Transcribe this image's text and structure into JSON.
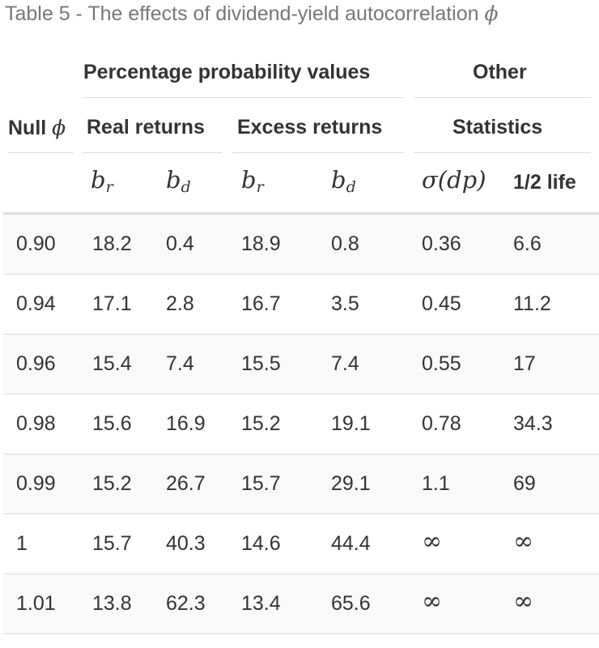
{
  "caption": {
    "text": "Table 5 - The effects of dividend-yield autocorrelation",
    "symbol": "ϕ"
  },
  "header": {
    "group_left": "Percentage probability values",
    "group_right": "Other",
    "null_label": "Null",
    "null_symbol": "ϕ",
    "real_returns": "Real returns",
    "excess_returns": "Excess returns",
    "statistics": "Statistics",
    "br_base": "b",
    "br_sub": "r",
    "bd_base": "b",
    "bd_sub": "d",
    "sigma": "σ(dp)",
    "half_life": "1/2 life"
  },
  "rows": [
    [
      "0.90",
      "18.2",
      "0.4",
      "18.9",
      "0.8",
      "0.36",
      "6.6"
    ],
    [
      "0.94",
      "17.1",
      "2.8",
      "16.7",
      "3.5",
      "0.45",
      "11.2"
    ],
    [
      "0.96",
      "15.4",
      "7.4",
      "15.5",
      "7.4",
      "0.55",
      "17"
    ],
    [
      "0.98",
      "15.6",
      "16.9",
      "15.2",
      "19.1",
      "0.78",
      "34.3"
    ],
    [
      "0.99",
      "15.2",
      "26.7",
      "15.7",
      "29.1",
      "1.1",
      "69"
    ],
    [
      "1",
      "15.7",
      "40.3",
      "14.6",
      "44.4",
      "∞",
      "∞"
    ],
    [
      "1.01",
      "13.8",
      "62.3",
      "13.4",
      "65.6",
      "∞",
      "∞"
    ]
  ]
}
